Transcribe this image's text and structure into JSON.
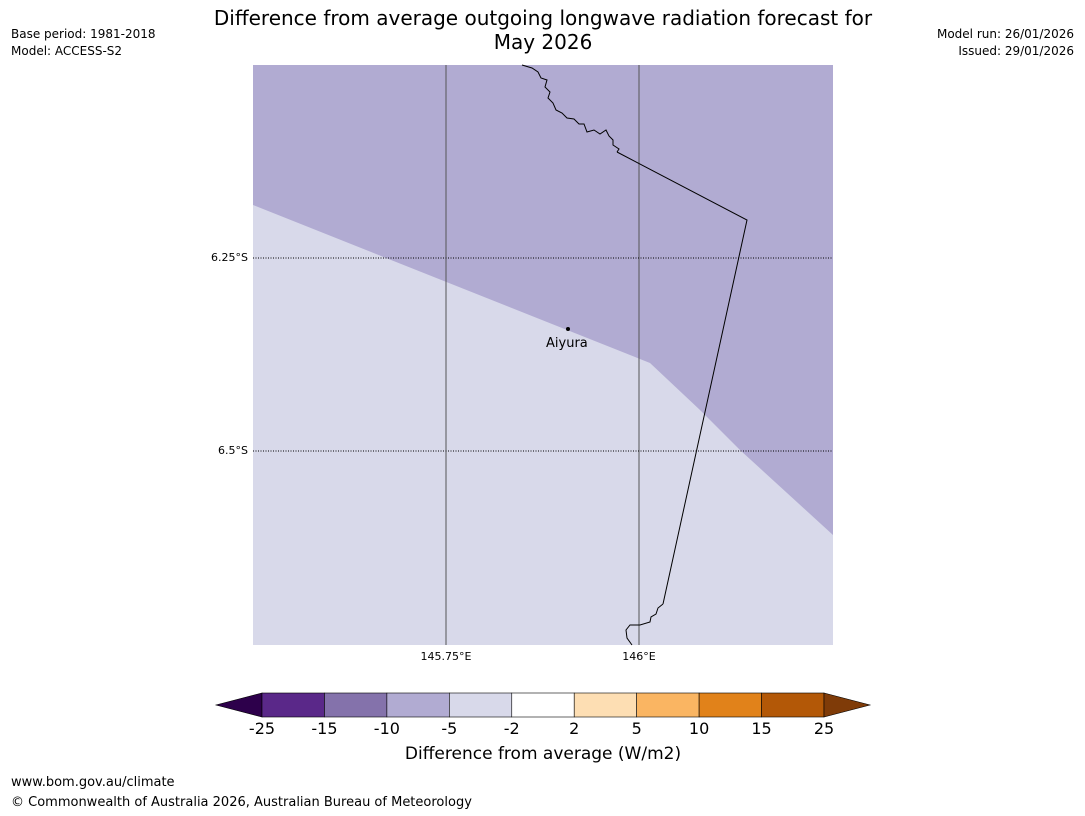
{
  "header": {
    "title_line1": "Difference from average outgoing longwave radiation forecast for",
    "title_line2": "May 2026",
    "base_period": "Base period: 1981-2018",
    "model": "Model: ACCESS-S2",
    "model_run": "Model run: 26/01/2026",
    "issued": "Issued: 29/01/2026"
  },
  "map": {
    "lat_labels": [
      "6.25°S",
      "6.5°S"
    ],
    "lon_labels": [
      "145.75°E",
      "146°E"
    ],
    "place": {
      "name": "Aiyura"
    },
    "fill_colors": {
      "upper": "#b1abd2",
      "lower": "#d8d9ea"
    },
    "gridline_color": "#555555",
    "coastline_color": "#000000"
  },
  "colorbar": {
    "title": "Difference from average (W/m2)",
    "ticks": [
      "-25",
      "-15",
      "-10",
      "-5",
      "-2",
      "2",
      "5",
      "10",
      "15",
      "25"
    ],
    "colors": [
      "#5a2889",
      "#8472ab",
      "#b1abd2",
      "#d8d9ea",
      "#ffffff",
      "#fddeb3",
      "#fab562",
      "#e1821a",
      "#b35807"
    ],
    "extend_low": "#2d004b",
    "extend_high": "#7f3b08"
  },
  "footer": {
    "url": "www.bom.gov.au/climate",
    "copyright": "© Commonwealth of Australia 2026, Australian Bureau of Meteorology"
  }
}
